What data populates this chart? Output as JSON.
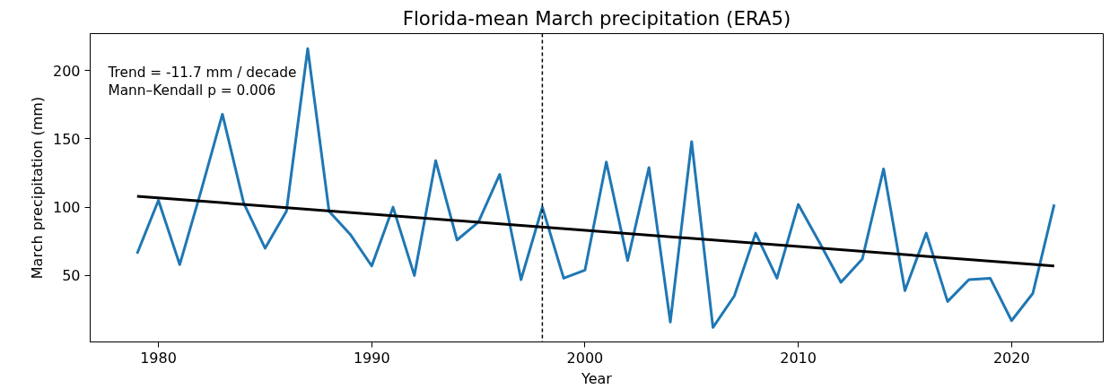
{
  "chart_data": {
    "type": "line",
    "title": "Florida-mean March precipitation (ERA5)",
    "xlabel": "Year",
    "ylabel": "March precipitation (mm)",
    "x": [
      1979,
      1980,
      1981,
      1982,
      1983,
      1984,
      1985,
      1986,
      1987,
      1988,
      1989,
      1990,
      1991,
      1992,
      1993,
      1994,
      1995,
      1996,
      1997,
      1998,
      1999,
      2000,
      2001,
      2002,
      2003,
      2004,
      2005,
      2006,
      2007,
      2008,
      2009,
      2010,
      2011,
      2012,
      2013,
      2014,
      2015,
      2016,
      2017,
      2018,
      2019,
      2020,
      2021,
      2022
    ],
    "series": [
      {
        "color": "#1f77b4",
        "values": [
          66,
          105,
          58,
          112,
          168,
          103,
          70,
          97,
          216,
          97,
          80,
          57,
          100,
          50,
          134,
          76,
          89,
          124,
          47,
          100,
          48,
          54,
          133,
          61,
          129,
          16,
          148,
          12,
          35,
          81,
          48,
          102,
          74,
          45,
          62,
          128,
          39,
          81,
          31,
          47,
          48,
          17,
          37,
          102
        ]
      },
      {
        "type": "line",
        "color": "#000000",
        "x": [
          1979,
          2022
        ],
        "values": [
          108,
          57
        ]
      }
    ],
    "ref_lines": [
      {
        "axis": "x",
        "value": 1998,
        "color": "#000000",
        "line_style": "dashed"
      }
    ],
    "annotations": [
      "Trend = -11.7 mm / decade",
      "Mann–Kendall p = 0.006"
    ],
    "xlim": [
      1976.8,
      2024.3
    ],
    "ylim": [
      1.4,
      227
    ],
    "xticks": [
      1980,
      1990,
      2000,
      2010,
      2020
    ],
    "yticks": [
      50,
      100,
      150,
      200
    ],
    "grid": false,
    "marker": "none",
    "line_style": "solid"
  }
}
